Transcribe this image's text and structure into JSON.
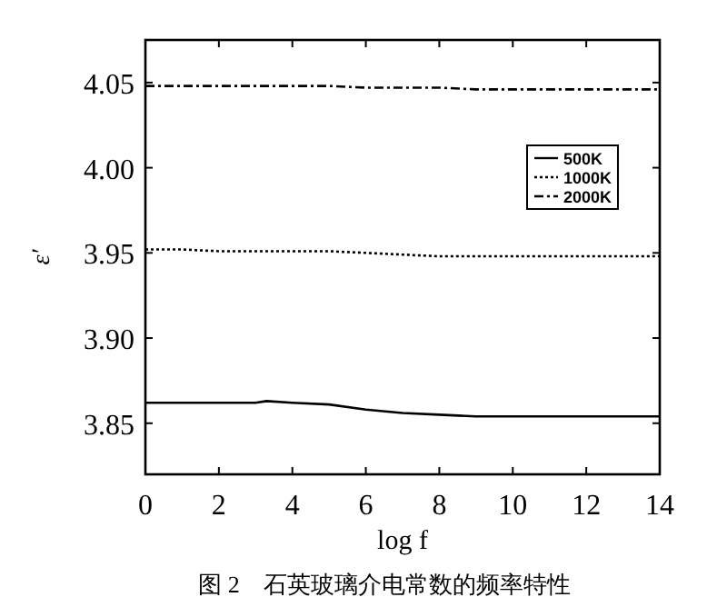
{
  "chart_data": {
    "type": "line",
    "title": "图 2　石英玻璃介电常数的频率特性",
    "xlabel": "log f",
    "ylabel": "ε′",
    "x": [
      0,
      1,
      2,
      3,
      3.3,
      4,
      5,
      6,
      7,
      8,
      9,
      10,
      11,
      12,
      13,
      14
    ],
    "series": [
      {
        "name": "500K",
        "color": "#000000",
        "line_style": "solid",
        "values": [
          3.862,
          3.862,
          3.862,
          3.862,
          3.863,
          3.862,
          3.861,
          3.858,
          3.856,
          3.855,
          3.854,
          3.854,
          3.854,
          3.854,
          3.854,
          3.854
        ]
      },
      {
        "name": "1000K",
        "color": "#000000",
        "line_style": "dotted",
        "values": [
          3.952,
          3.952,
          3.951,
          3.951,
          3.951,
          3.951,
          3.951,
          3.95,
          3.949,
          3.948,
          3.948,
          3.948,
          3.948,
          3.948,
          3.948,
          3.948
        ]
      },
      {
        "name": "2000K",
        "color": "#000000",
        "line_style": "dashed",
        "values": [
          4.048,
          4.048,
          4.048,
          4.048,
          4.048,
          4.048,
          4.048,
          4.047,
          4.047,
          4.047,
          4.046,
          4.046,
          4.046,
          4.046,
          4.046,
          4.046
        ]
      }
    ],
    "xlim": [
      0,
      14
    ],
    "xticks": [
      0,
      2,
      4,
      6,
      8,
      10,
      12,
      14
    ],
    "ylim": [
      3.82,
      4.075
    ],
    "yticks": [
      3.85,
      {
        "value": 3.9,
        "label": "3.90"
      },
      3.95,
      {
        "value": 4.0,
        "label": "4.00"
      },
      4.05
    ],
    "legend": "right",
    "grid": false,
    "marker": "none"
  }
}
